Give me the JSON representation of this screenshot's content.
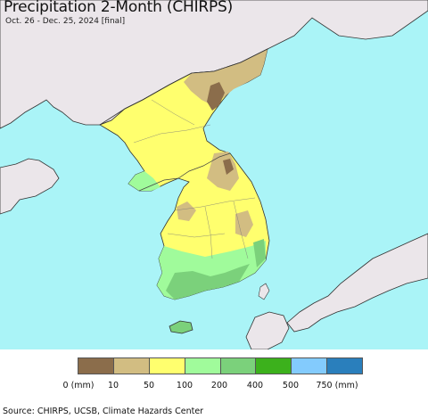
{
  "header": {
    "title": "Precipitation 2-Month (CHIRPS)",
    "subtitle": "Oct. 26 - Dec. 25, 2024 [final]"
  },
  "map": {
    "region": "Korean Peninsula",
    "ocean_color": "#aaf4f7",
    "other_land_color": "#ebe6ea"
  },
  "legend": {
    "unit_first": "0 (mm)",
    "labels": [
      "0 (mm)",
      "10",
      "50",
      "100",
      "200",
      "400",
      "500",
      "750 (mm)"
    ],
    "colors": [
      "#8b6d4b",
      "#d2bd82",
      "#ffff6e",
      "#a0fb9b",
      "#7bd17b",
      "#3cb11c",
      "#83cbfd",
      "#2a7fbc"
    ]
  },
  "footer": {
    "source": "Source: CHIRPS, UCSB, Climate Hazards Center"
  }
}
